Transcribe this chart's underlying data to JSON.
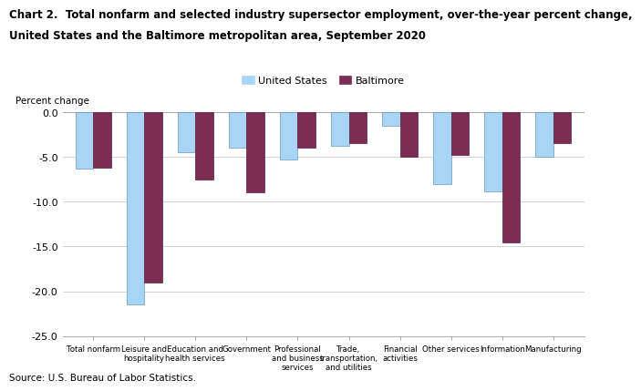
{
  "title_line1": "Chart 2.  Total nonfarm and selected industry supersector employment, over-the-year percent change,",
  "title_line2": "United States and the Baltimore metropolitan area, September 2020",
  "ylabel": "Percent change",
  "source": "Source: U.S. Bureau of Labor Statistics.",
  "categories": [
    "Total nonfarm",
    "Leisure and\nhospitality",
    "Education and\nhealth services",
    "Government",
    "Professional\nand business\nservices",
    "Trade,\ntransportation,\nand utilities",
    "Financial\nactivities",
    "Other services",
    "Information",
    "Manufacturing"
  ],
  "us_values": [
    -6.3,
    -21.5,
    -4.5,
    -4.0,
    -5.3,
    -3.8,
    -1.5,
    -8.0,
    -8.8,
    -5.0
  ],
  "baltimore_values": [
    -6.2,
    -19.0,
    -7.5,
    -9.0,
    -4.0,
    -3.5,
    -5.0,
    -4.8,
    -14.5,
    -3.5
  ],
  "us_color": "#a8d4f5",
  "baltimore_color": "#7b2d54",
  "us_edge": "#6699bb",
  "balt_edge": "#5a1e3c",
  "ylim": [
    -25.0,
    0.5
  ],
  "yticks": [
    0.0,
    -5.0,
    -10.0,
    -15.0,
    -20.0,
    -25.0
  ],
  "legend_us": "United States",
  "legend_baltimore": "Baltimore",
  "bar_width": 0.35
}
